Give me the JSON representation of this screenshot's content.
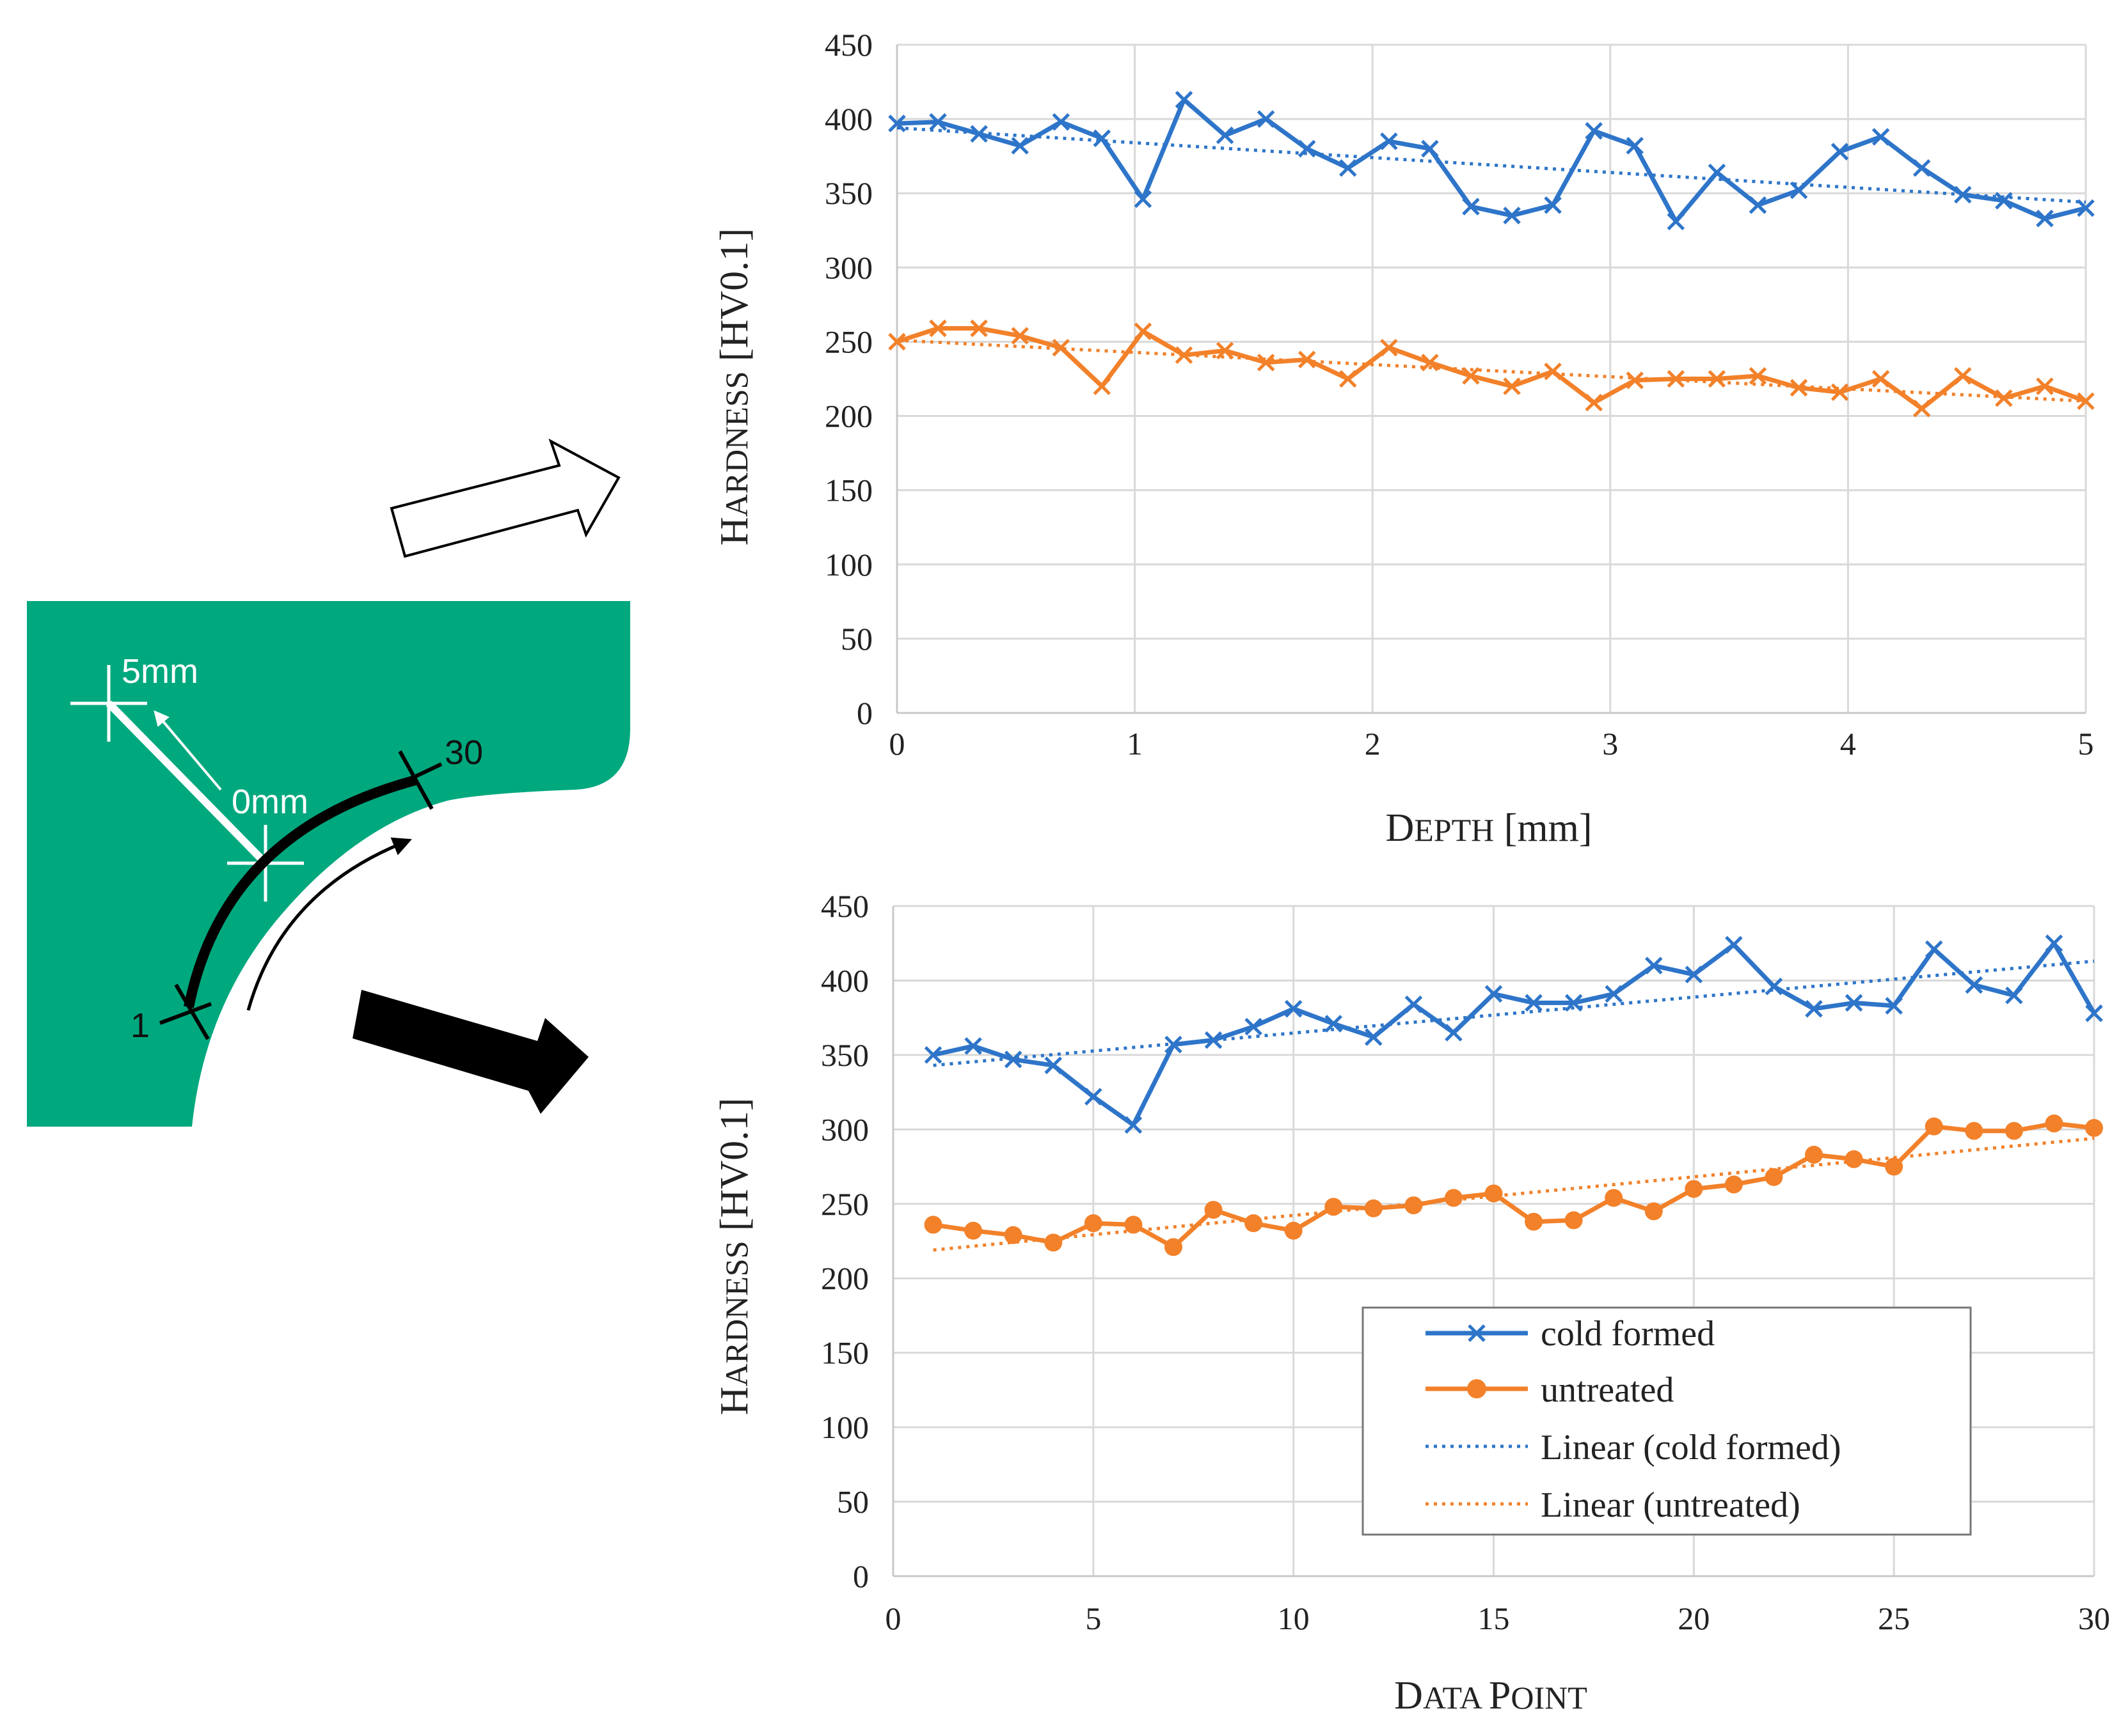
{
  "colors": {
    "cold_formed": "#2e75c9",
    "untreated": "#f2812a",
    "section_fill": "#00a87e",
    "grid": "#d9d9d9"
  },
  "diagram": {
    "label_5mm": "5mm",
    "label_0mm": "0mm",
    "label_start": "1",
    "label_end": "30"
  },
  "chart_data": [
    {
      "type": "line",
      "xlabel_cap": "D",
      "xlabel_sc": "EPTH",
      "xlabel_unit": " [mm]",
      "ylabel_cap": "H",
      "ylabel_sc": "ARDNESS",
      "ylabel_unit": " [HV0.1]",
      "xlim": [
        0,
        5
      ],
      "ylim": [
        0,
        450
      ],
      "xticks": [
        0,
        1,
        2,
        3,
        4,
        5
      ],
      "yticks": [
        0,
        50,
        100,
        150,
        200,
        250,
        300,
        350,
        400,
        450
      ],
      "grid": true,
      "series": [
        {
          "name": "cold formed",
          "marker": "x",
          "x": [
            0,
            0.1724,
            0.3448,
            0.5172,
            0.6897,
            0.8621,
            1.0345,
            1.2069,
            1.3793,
            1.5517,
            1.7241,
            1.8966,
            2.069,
            2.2414,
            2.4138,
            2.5862,
            2.7586,
            2.931,
            3.1034,
            3.2759,
            3.4483,
            3.6207,
            3.7931,
            3.9655,
            4.1379,
            4.3103,
            4.4828,
            4.6552,
            4.8276,
            5
          ],
          "values": [
            397,
            398,
            390,
            382,
            398,
            387,
            346,
            413,
            389,
            400,
            380,
            367,
            385,
            380,
            341,
            335,
            342,
            392,
            382,
            331,
            364,
            342,
            352,
            378,
            388,
            367,
            349,
            345,
            333,
            340
          ]
        },
        {
          "name": "untreated",
          "marker": "x",
          "x": [
            0,
            0.1724,
            0.3448,
            0.5172,
            0.6897,
            0.8621,
            1.0345,
            1.2069,
            1.3793,
            1.5517,
            1.7241,
            1.8966,
            2.069,
            2.2414,
            2.4138,
            2.5862,
            2.7586,
            2.931,
            3.1034,
            3.2759,
            3.4483,
            3.6207,
            3.7931,
            3.9655,
            4.1379,
            4.3103,
            4.4828,
            4.6552,
            4.8276,
            5
          ],
          "values": [
            250,
            259,
            259,
            254,
            246,
            220,
            257,
            241,
            244,
            236,
            238,
            225,
            246,
            236,
            227,
            220,
            230,
            209,
            224,
            225,
            225,
            227,
            219,
            216,
            225,
            205,
            227,
            212,
            220,
            210
          ]
        },
        {
          "name": "Linear (cold formed)",
          "style": "dotted",
          "x": [
            0,
            5
          ],
          "values": [
            394,
            344
          ]
        },
        {
          "name": "Linear (untreated)",
          "style": "dotted",
          "x": [
            0,
            5
          ],
          "values": [
            251,
            210
          ]
        }
      ]
    },
    {
      "type": "line",
      "xlabel_cap": "D",
      "xlabel_sc": "ATA ",
      "xlabel_cap2": "P",
      "xlabel_sc2": "OINT",
      "ylabel_cap": "H",
      "ylabel_sc": "ARDNESS",
      "ylabel_unit": " [HV0.1]",
      "xlim": [
        0,
        30
      ],
      "ylim": [
        0,
        450
      ],
      "xticks": [
        0,
        5,
        10,
        15,
        20,
        25,
        30
      ],
      "yticks": [
        0,
        50,
        100,
        150,
        200,
        250,
        300,
        350,
        400,
        450
      ],
      "grid": true,
      "series": [
        {
          "name": "cold formed",
          "marker": "x",
          "x": [
            1,
            2,
            3,
            4,
            5,
            6,
            7,
            8,
            9,
            10,
            11,
            12,
            13,
            14,
            15,
            16,
            17,
            18,
            19,
            20,
            21,
            22,
            23,
            24,
            25,
            26,
            27,
            28,
            29,
            30
          ],
          "values": [
            350,
            356,
            347,
            343,
            322,
            303,
            357,
            360,
            369,
            381,
            371,
            362,
            384,
            365,
            391,
            385,
            385,
            391,
            410,
            404,
            424,
            396,
            381,
            385,
            383,
            421,
            397,
            390,
            425,
            378
          ]
        },
        {
          "name": "untreated",
          "marker": "circle",
          "x": [
            1,
            2,
            3,
            4,
            5,
            6,
            7,
            8,
            9,
            10,
            11,
            12,
            13,
            14,
            15,
            16,
            17,
            18,
            19,
            20,
            21,
            22,
            23,
            24,
            25,
            26,
            27,
            28,
            29,
            30
          ],
          "values": [
            236,
            232,
            229,
            224,
            237,
            236,
            221,
            246,
            237,
            232,
            248,
            247,
            249,
            254,
            257,
            238,
            239,
            254,
            245,
            260,
            263,
            268,
            283,
            280,
            275,
            302,
            299,
            299,
            304,
            301
          ]
        },
        {
          "name": "Linear (cold formed)",
          "style": "dotted",
          "x": [
            1,
            30
          ],
          "values": [
            343,
            413
          ]
        },
        {
          "name": "Linear (untreated)",
          "style": "dotted",
          "x": [
            1,
            30
          ],
          "values": [
            219,
            294
          ]
        }
      ],
      "legend": {
        "placement": "bottom-right",
        "entries": [
          "cold formed",
          "untreated",
          "Linear (cold formed)",
          "Linear (untreated)"
        ]
      }
    }
  ]
}
